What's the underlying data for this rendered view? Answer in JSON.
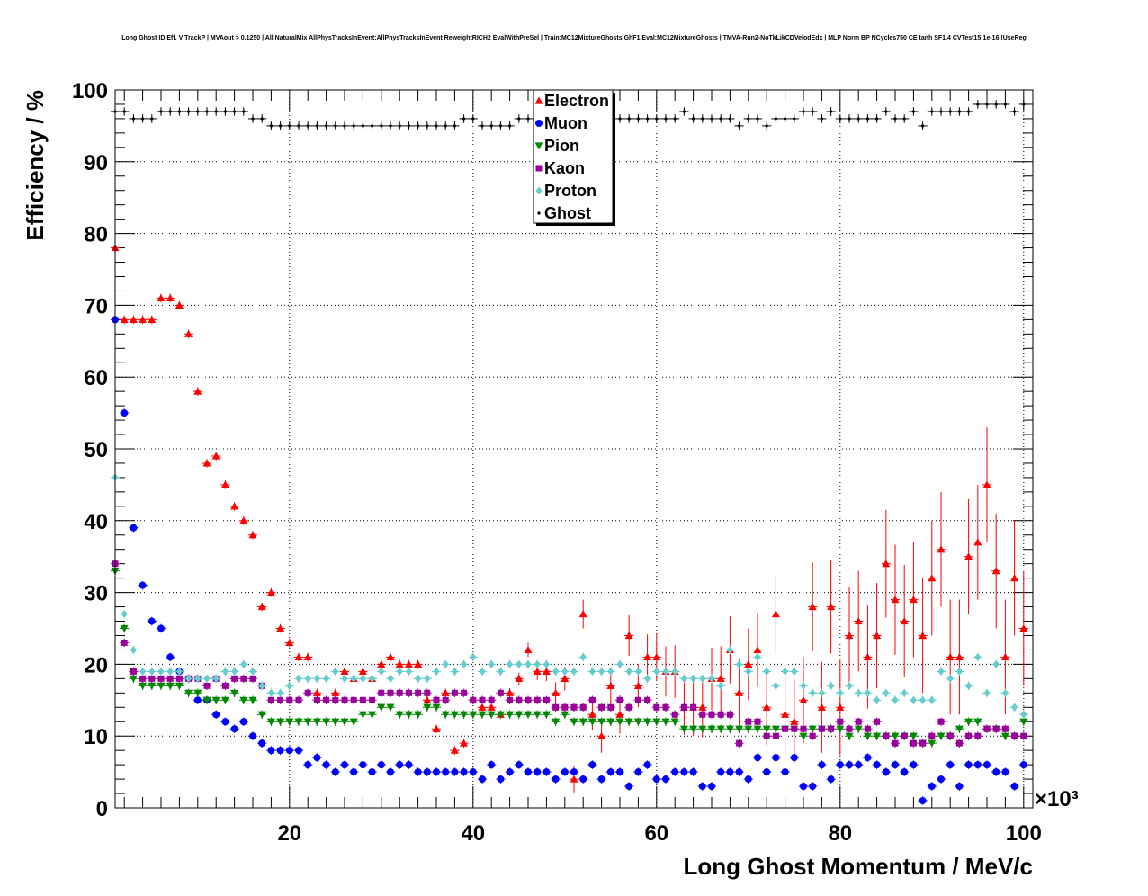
{
  "chart_data": {
    "type": "scatter",
    "title": "Long Ghost ID Eff. V TrackP | MVAout > 0.1250 | All NaturalMix AllPhysTracksInEvent:AllPhysTracksInEvent ReweightRICH2 EvalWithPreSel | Train:MC12MixtureGhosts GhF1 Eval:MC12MixtureGhosts | TMVA-Run2-NoTkLikCDVelodEdx | MLP Norm BP NCycles750 CE tanh SF1.4 CVTest15:1e-16 !UseReg",
    "xlabel": "Long Ghost Momentum / MeV/c",
    "ylabel": "Efficiency / %",
    "x_multiplier": "×10³",
    "xlim": [
      1,
      101
    ],
    "ylim": [
      0,
      100
    ],
    "xticks": [
      "20",
      "40",
      "60",
      "80",
      "100"
    ],
    "yticks": [
      "0",
      "10",
      "20",
      "30",
      "40",
      "50",
      "60",
      "70",
      "80",
      "90",
      "100"
    ],
    "grid": true,
    "legend_position": "top-center",
    "series": [
      {
        "name": "Electron",
        "color": "#ff0000",
        "marker": "triangle-up",
        "x": [
          1,
          2,
          3,
          4,
          5,
          6,
          7,
          8,
          9,
          10,
          11,
          12,
          13,
          14,
          15,
          16,
          17,
          18,
          19,
          20,
          21,
          22,
          23,
          24,
          25,
          26,
          27,
          28,
          29,
          30,
          31,
          32,
          33,
          34,
          35,
          36,
          37,
          38,
          39,
          40,
          41,
          42,
          43,
          44,
          45,
          46,
          47,
          48,
          49,
          50,
          51,
          52,
          53,
          54,
          55,
          56,
          57,
          58,
          59,
          60,
          61,
          62,
          63,
          64,
          65,
          66,
          67,
          68,
          69,
          70,
          71,
          72,
          73,
          74,
          75,
          76,
          77,
          78,
          79,
          80,
          81,
          82,
          83,
          84,
          85,
          86,
          87,
          88,
          89,
          90,
          91,
          92,
          93,
          94,
          95,
          96,
          97,
          98,
          99,
          100
        ],
        "y": [
          78,
          68,
          68,
          68,
          68,
          71,
          71,
          70,
          66,
          58,
          48,
          49,
          45,
          42,
          40,
          38,
          28,
          30,
          25,
          23,
          21,
          21,
          16,
          15,
          16,
          19,
          18,
          19,
          18,
          20,
          21,
          20,
          20,
          20,
          15,
          11,
          16,
          8,
          9,
          15,
          14,
          14,
          13,
          16,
          18,
          22,
          19,
          19,
          16,
          18,
          4,
          27,
          13,
          10,
          17,
          13,
          24,
          17,
          21,
          21,
          19,
          19,
          14,
          14,
          14,
          18,
          18,
          22,
          16,
          20,
          22,
          14,
          27,
          13,
          12,
          15,
          28,
          14,
          28,
          14,
          24,
          26,
          21,
          24,
          34,
          29,
          26,
          29,
          24,
          32,
          36,
          21,
          21,
          35,
          37,
          45,
          33,
          21,
          32,
          25
        ]
      },
      {
        "name": "Muon",
        "color": "#0000ff",
        "marker": "circle",
        "x": [
          1,
          2,
          3,
          4,
          5,
          6,
          7,
          8,
          9,
          10,
          11,
          12,
          13,
          14,
          15,
          16,
          17,
          18,
          19,
          20,
          21,
          22,
          23,
          24,
          25,
          26,
          27,
          28,
          29,
          30,
          31,
          32,
          33,
          34,
          35,
          36,
          37,
          38,
          39,
          40,
          41,
          42,
          43,
          44,
          45,
          46,
          47,
          48,
          49,
          50,
          51,
          52,
          53,
          54,
          55,
          56,
          57,
          58,
          59,
          60,
          61,
          62,
          63,
          64,
          65,
          66,
          67,
          68,
          69,
          70,
          71,
          72,
          73,
          74,
          75,
          76,
          77,
          78,
          79,
          80,
          81,
          82,
          83,
          84,
          85,
          86,
          87,
          88,
          89,
          90,
          91,
          92,
          93,
          94,
          95,
          96,
          97,
          98,
          99,
          100
        ],
        "y": [
          68,
          55,
          39,
          31,
          26,
          25,
          21,
          19,
          18,
          15,
          15,
          13,
          12,
          11,
          12,
          10,
          9,
          8,
          8,
          8,
          8,
          6,
          7,
          6,
          5,
          6,
          5,
          6,
          5,
          6,
          5,
          6,
          6,
          5,
          5,
          5,
          5,
          5,
          5,
          5,
          4,
          6,
          4,
          5,
          6,
          5,
          5,
          5,
          4,
          5,
          5,
          4,
          6,
          4,
          5,
          5,
          3,
          5,
          6,
          4,
          4,
          5,
          5,
          5,
          3,
          3,
          5,
          5,
          5,
          4,
          7,
          5,
          7,
          5,
          7,
          3,
          3,
          6,
          4,
          6,
          6,
          6,
          7,
          6,
          5,
          6,
          5,
          6,
          1,
          3,
          4,
          6,
          3,
          6,
          6,
          6,
          5,
          5,
          3,
          6
        ]
      },
      {
        "name": "Pion",
        "color": "#008800",
        "marker": "triangle-down",
        "x": [
          1,
          2,
          3,
          4,
          5,
          6,
          7,
          8,
          9,
          10,
          11,
          12,
          13,
          14,
          15,
          16,
          17,
          18,
          19,
          20,
          21,
          22,
          23,
          24,
          25,
          26,
          27,
          28,
          29,
          30,
          31,
          32,
          33,
          34,
          35,
          36,
          37,
          38,
          39,
          40,
          41,
          42,
          43,
          44,
          45,
          46,
          47,
          48,
          49,
          50,
          51,
          52,
          53,
          54,
          55,
          56,
          57,
          58,
          59,
          60,
          61,
          62,
          63,
          64,
          65,
          66,
          67,
          68,
          69,
          70,
          71,
          72,
          73,
          74,
          75,
          76,
          77,
          78,
          79,
          80,
          81,
          82,
          83,
          84,
          85,
          86,
          87,
          88,
          89,
          90,
          91,
          92,
          93,
          94,
          95,
          96,
          97,
          98,
          99,
          100
        ],
        "y": [
          33,
          25,
          18,
          17,
          17,
          17,
          17,
          17,
          16,
          16,
          15,
          15,
          15,
          16,
          15,
          15,
          13,
          12,
          12,
          12,
          12,
          12,
          12,
          12,
          12,
          12,
          12,
          13,
          13,
          14,
          14,
          13,
          13,
          13,
          14,
          14,
          13,
          13,
          13,
          13,
          13,
          13,
          13,
          13,
          13,
          13,
          13,
          13,
          12,
          13,
          12,
          12,
          12,
          12,
          12,
          12,
          12,
          12,
          12,
          12,
          12,
          12,
          11,
          11,
          11,
          11,
          11,
          11,
          11,
          11,
          11,
          11,
          11,
          11,
          11,
          10,
          11,
          11,
          11,
          11,
          10,
          11,
          10,
          10,
          10,
          10,
          10,
          10,
          9,
          9,
          10,
          10,
          11,
          12,
          12,
          11,
          11,
          10,
          10,
          12
        ]
      },
      {
        "name": "Kaon",
        "color": "#990099",
        "marker": "square",
        "x": [
          1,
          2,
          3,
          4,
          5,
          6,
          7,
          8,
          9,
          10,
          11,
          12,
          13,
          14,
          15,
          16,
          17,
          18,
          19,
          20,
          21,
          22,
          23,
          24,
          25,
          26,
          27,
          28,
          29,
          30,
          31,
          32,
          33,
          34,
          35,
          36,
          37,
          38,
          39,
          40,
          41,
          42,
          43,
          44,
          45,
          46,
          47,
          48,
          49,
          50,
          51,
          52,
          53,
          54,
          55,
          56,
          57,
          58,
          59,
          60,
          61,
          62,
          63,
          64,
          65,
          66,
          67,
          68,
          69,
          70,
          71,
          72,
          73,
          74,
          75,
          76,
          77,
          78,
          79,
          80,
          81,
          82,
          83,
          84,
          85,
          86,
          87,
          88,
          89,
          90,
          91,
          92,
          93,
          94,
          95,
          96,
          97,
          98,
          99,
          100
        ],
        "y": [
          34,
          23,
          19,
          18,
          18,
          18,
          18,
          18,
          18,
          18,
          17,
          18,
          17,
          18,
          18,
          18,
          17,
          15,
          15,
          15,
          15,
          16,
          15,
          15,
          15,
          15,
          15,
          15,
          15,
          16,
          16,
          16,
          16,
          16,
          16,
          15,
          15,
          16,
          16,
          15,
          15,
          15,
          16,
          15,
          15,
          15,
          15,
          15,
          14,
          14,
          14,
          14,
          15,
          14,
          14,
          15,
          14,
          15,
          15,
          14,
          14,
          13,
          14,
          14,
          13,
          13,
          13,
          13,
          9,
          12,
          12,
          10,
          10,
          11,
          11,
          11,
          10,
          11,
          11,
          12,
          11,
          12,
          11,
          12,
          10,
          9,
          10,
          9,
          9,
          10,
          12,
          10,
          9,
          10,
          10,
          11,
          11,
          11,
          10,
          10
        ]
      },
      {
        "name": "Proton",
        "color": "#66cccc",
        "marker": "diamond",
        "x": [
          1,
          2,
          3,
          4,
          5,
          6,
          7,
          8,
          9,
          10,
          11,
          12,
          13,
          14,
          15,
          16,
          17,
          18,
          19,
          20,
          21,
          22,
          23,
          24,
          25,
          26,
          27,
          28,
          29,
          30,
          31,
          32,
          33,
          34,
          35,
          36,
          37,
          38,
          39,
          40,
          41,
          42,
          43,
          44,
          45,
          46,
          47,
          48,
          49,
          50,
          51,
          52,
          53,
          54,
          55,
          56,
          57,
          58,
          59,
          60,
          61,
          62,
          63,
          64,
          65,
          66,
          67,
          68,
          69,
          70,
          71,
          72,
          73,
          74,
          75,
          76,
          77,
          78,
          79,
          80,
          81,
          82,
          83,
          84,
          85,
          86,
          87,
          88,
          89,
          90,
          91,
          92,
          93,
          94,
          95,
          96,
          97,
          98,
          99,
          100
        ],
        "y": [
          46,
          27,
          22,
          19,
          19,
          19,
          19,
          19,
          18,
          18,
          18,
          18,
          19,
          19,
          20,
          19,
          17,
          16,
          16,
          17,
          18,
          18,
          18,
          18,
          19,
          18,
          18,
          18,
          18,
          19,
          18,
          19,
          19,
          18,
          18,
          19,
          20,
          19,
          20,
          21,
          19,
          20,
          19,
          20,
          20,
          20,
          20,
          20,
          19,
          19,
          19,
          21,
          19,
          19,
          19,
          20,
          19,
          19,
          18,
          19,
          19,
          19,
          18,
          18,
          18,
          18,
          17,
          22,
          20,
          19,
          21,
          19,
          17,
          19,
          19,
          17,
          16,
          16,
          17,
          16,
          17,
          16,
          16,
          15,
          16,
          15,
          16,
          15,
          15,
          15,
          19,
          18,
          19,
          17,
          21,
          16,
          20,
          16,
          14,
          13
        ]
      },
      {
        "name": "Ghost",
        "color": "#000000",
        "marker": "cross",
        "x": [
          1,
          2,
          3,
          4,
          5,
          6,
          7,
          8,
          9,
          10,
          11,
          12,
          13,
          14,
          15,
          16,
          17,
          18,
          19,
          20,
          21,
          22,
          23,
          24,
          25,
          26,
          27,
          28,
          29,
          30,
          31,
          32,
          33,
          34,
          35,
          36,
          37,
          38,
          39,
          40,
          41,
          42,
          43,
          44,
          45,
          46,
          47,
          48,
          49,
          50,
          51,
          52,
          53,
          54,
          55,
          56,
          57,
          58,
          59,
          60,
          61,
          62,
          63,
          64,
          65,
          66,
          67,
          68,
          69,
          70,
          71,
          72,
          73,
          74,
          75,
          76,
          77,
          78,
          79,
          80,
          81,
          82,
          83,
          84,
          85,
          86,
          87,
          88,
          89,
          90,
          91,
          92,
          93,
          94,
          95,
          96,
          97,
          98,
          99,
          100
        ],
        "y": [
          97,
          97,
          96,
          96,
          96,
          97,
          97,
          97,
          97,
          97,
          97,
          97,
          97,
          97,
          97,
          96,
          96,
          95,
          95,
          95,
          95,
          95,
          95,
          95,
          95,
          95,
          95,
          95,
          95,
          95,
          95,
          95,
          95,
          95,
          95,
          95,
          95,
          95,
          96,
          96,
          95,
          95,
          95,
          95,
          96,
          96,
          96,
          96,
          96,
          96,
          96,
          96,
          96,
          96,
          96,
          96,
          96,
          96,
          96,
          96,
          96,
          96,
          97,
          96,
          96,
          96,
          96,
          96,
          95,
          96,
          96,
          95,
          96,
          96,
          96,
          97,
          97,
          96,
          97,
          96,
          96,
          96,
          96,
          96,
          97,
          96,
          96,
          97,
          95,
          97,
          97,
          97,
          97,
          97,
          98,
          98,
          98,
          98,
          97,
          98
        ]
      }
    ]
  }
}
